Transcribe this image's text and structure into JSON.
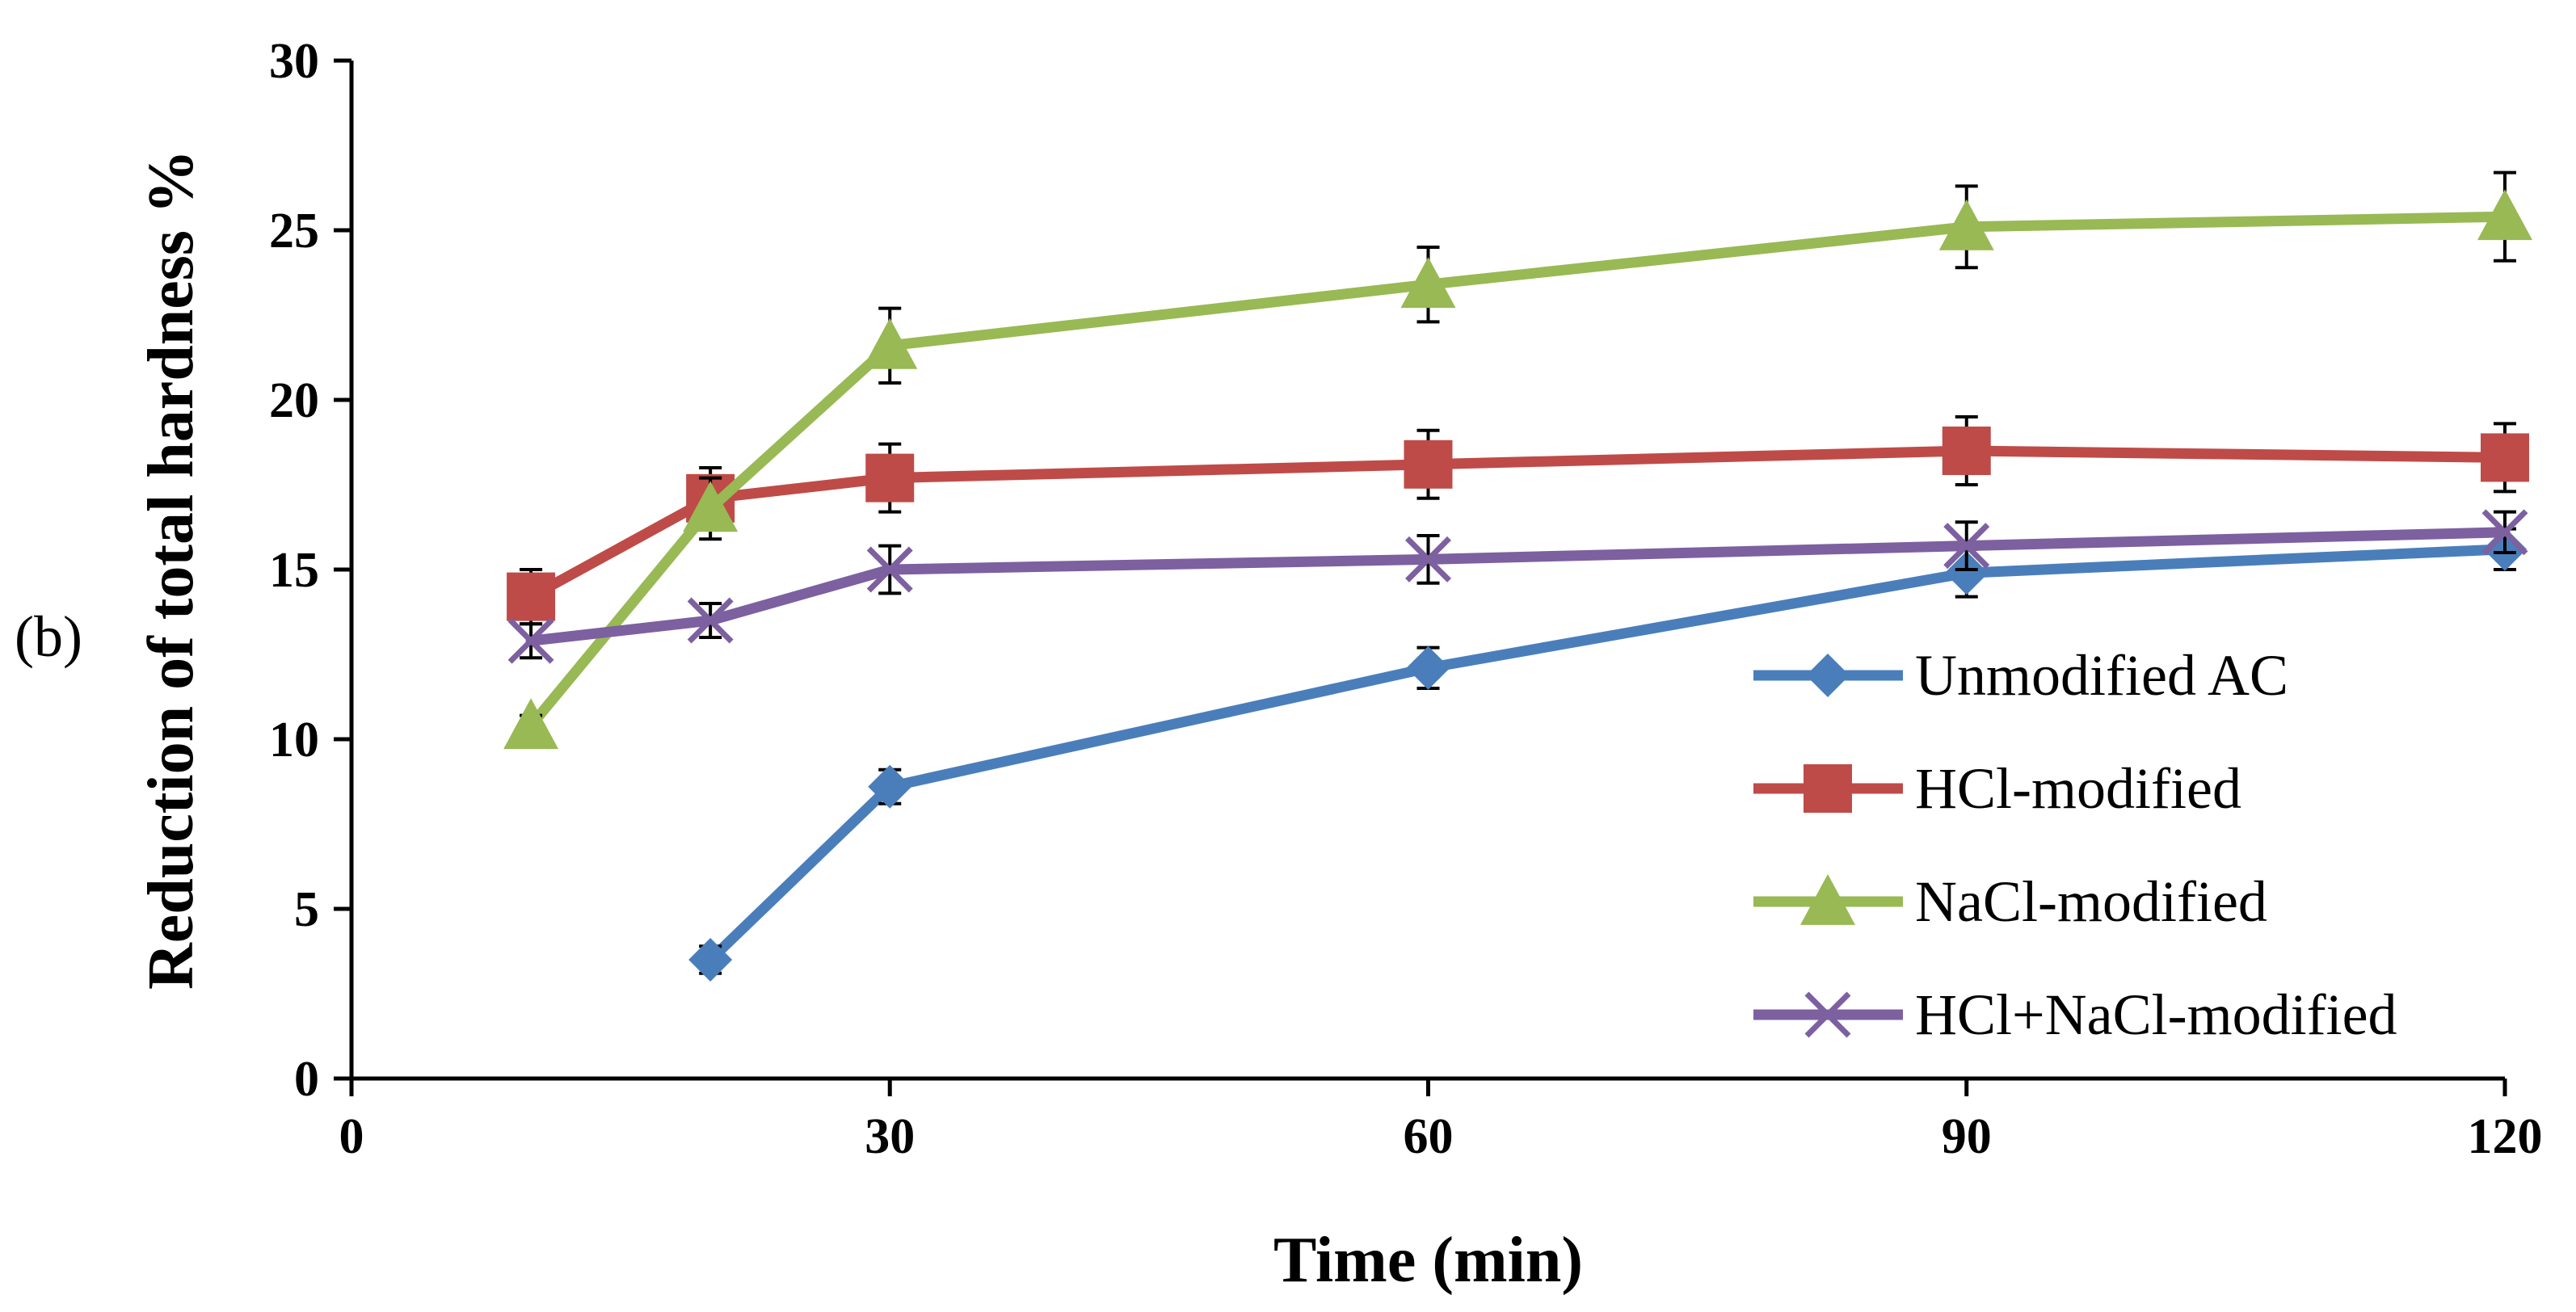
{
  "chart_data": {
    "type": "line",
    "panel_label": "(b)",
    "xlabel": "Time (min)",
    "ylabel": "Reduction of total hardness %",
    "xlim": [
      0,
      120
    ],
    "ylim": [
      0,
      30
    ],
    "xticks": [
      0,
      30,
      60,
      90,
      120
    ],
    "xtick_labels": [
      "0",
      "30",
      "60",
      "90",
      "120"
    ],
    "yticks": [
      0,
      5,
      10,
      15,
      20,
      25,
      30
    ],
    "ytick_labels": [
      "0",
      "5",
      "10",
      "15",
      "20",
      "25",
      "30"
    ],
    "grid": false,
    "legend_position": "bottom-right",
    "series": [
      {
        "name": "Unmodified AC",
        "color": "#4a7ebb",
        "marker": "diamond",
        "x": [
          20,
          30,
          60,
          90,
          120
        ],
        "values": [
          3.5,
          8.6,
          12.1,
          14.9,
          15.6
        ],
        "errors": [
          0.4,
          0.5,
          0.6,
          0.7,
          0.6
        ]
      },
      {
        "name": "HCl-modified",
        "color": "#be4b48",
        "marker": "square",
        "x": [
          10,
          20,
          30,
          60,
          90,
          120
        ],
        "values": [
          14.2,
          17.1,
          17.7,
          18.1,
          18.5,
          18.3
        ],
        "errors": [
          0.8,
          0.9,
          1.0,
          1.0,
          1.0,
          1.0
        ]
      },
      {
        "name": "NaCl-modified",
        "color": "#98b954",
        "marker": "triangle",
        "x": [
          10,
          20,
          30,
          60,
          90,
          120
        ],
        "values": [
          10.4,
          16.8,
          21.6,
          23.4,
          25.1,
          25.4
        ],
        "errors": [
          0.3,
          0.9,
          1.1,
          1.1,
          1.2,
          1.3
        ]
      },
      {
        "name": "HCl+NaCl-modified",
        "color": "#7d60a0",
        "marker": "x",
        "x": [
          10,
          20,
          30,
          60,
          90,
          120
        ],
        "values": [
          12.9,
          13.5,
          15.0,
          15.3,
          15.7,
          16.1
        ],
        "errors": [
          0.5,
          0.5,
          0.7,
          0.7,
          0.7,
          0.6
        ]
      }
    ]
  }
}
